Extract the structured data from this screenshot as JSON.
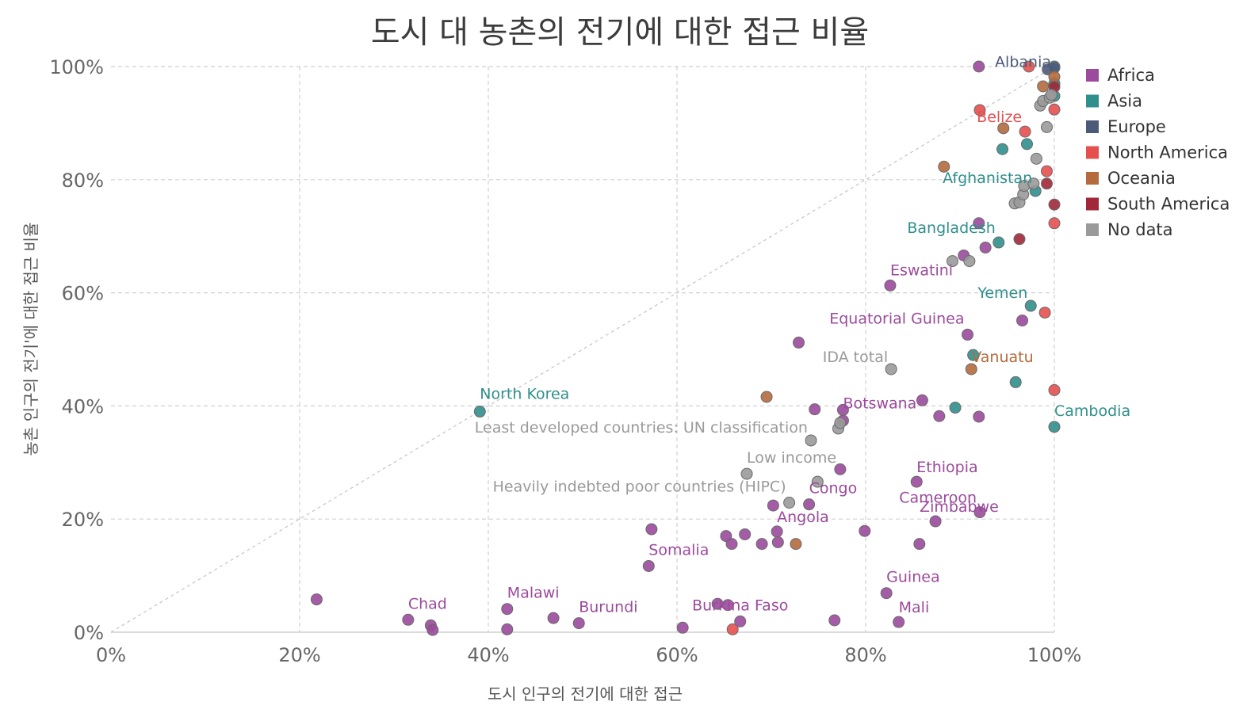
{
  "chart_data": {
    "type": "scatter",
    "title": "도시 대 농촌의 전기에 대한 접근 비율",
    "xlabel": "도시 인구의 전기에 대한 접근",
    "ylabel": "농촌 인구의 전기'에 대한 접근 비율",
    "xlim": [
      0,
      100
    ],
    "ylim": [
      0,
      100
    ],
    "x_ticks": [
      "0%",
      "20%",
      "40%",
      "60%",
      "80%",
      "100%"
    ],
    "y_ticks": [
      "0%",
      "20%",
      "40%",
      "60%",
      "80%",
      "100%"
    ],
    "grid": true,
    "reference_line": "y = x",
    "legend_position": "right",
    "legend": [
      {
        "name": "Africa",
        "color": "#9b4a9c"
      },
      {
        "name": "Asia",
        "color": "#2f8f8c"
      },
      {
        "name": "Europe",
        "color": "#4c5a7a"
      },
      {
        "name": "North America",
        "color": "#e5504f"
      },
      {
        "name": "Oceania",
        "color": "#b46a3c"
      },
      {
        "name": "South America",
        "color": "#a02838"
      },
      {
        "name": "No data",
        "color": "#9a9a9a"
      }
    ],
    "points": [
      {
        "x": 21.8,
        "y": 5.8,
        "region": "Africa"
      },
      {
        "x": 31.5,
        "y": 2.2,
        "region": "Africa",
        "label": "Chad"
      },
      {
        "x": 33.9,
        "y": 1.2,
        "region": "Africa"
      },
      {
        "x": 34.1,
        "y": 0.4,
        "region": "Africa"
      },
      {
        "x": 42.0,
        "y": 4.1,
        "region": "Africa",
        "label": "Malawi"
      },
      {
        "x": 42.0,
        "y": 0.5,
        "region": "Africa"
      },
      {
        "x": 46.9,
        "y": 2.5,
        "region": "Africa"
      },
      {
        "x": 49.6,
        "y": 1.6,
        "region": "Africa",
        "label": "Burundi"
      },
      {
        "x": 57.0,
        "y": 11.7,
        "region": "Africa",
        "label": "Somalia"
      },
      {
        "x": 57.3,
        "y": 18.2,
        "region": "Africa"
      },
      {
        "x": 60.6,
        "y": 0.8,
        "region": "Africa"
      },
      {
        "x": 64.3,
        "y": 5.0,
        "region": "Africa"
      },
      {
        "x": 65.2,
        "y": 17.0,
        "region": "Africa"
      },
      {
        "x": 65.4,
        "y": 4.8,
        "region": "Africa"
      },
      {
        "x": 65.8,
        "y": 15.6,
        "region": "Africa"
      },
      {
        "x": 66.7,
        "y": 1.9,
        "region": "Africa",
        "label": "Burkina Faso"
      },
      {
        "x": 67.2,
        "y": 17.3,
        "region": "Africa"
      },
      {
        "x": 65.9,
        "y": 0.5,
        "region": "North America"
      },
      {
        "x": 69.0,
        "y": 15.6,
        "region": "Africa"
      },
      {
        "x": 70.2,
        "y": 22.4,
        "region": "Africa"
      },
      {
        "x": 70.6,
        "y": 17.8,
        "region": "Africa",
        "label": "Angola"
      },
      {
        "x": 70.7,
        "y": 15.9,
        "region": "Africa"
      },
      {
        "x": 69.5,
        "y": 41.6,
        "region": "Oceania"
      },
      {
        "x": 72.6,
        "y": 15.6,
        "region": "Oceania"
      },
      {
        "x": 72.9,
        "y": 51.2,
        "region": "Africa"
      },
      {
        "x": 74.0,
        "y": 22.6,
        "region": "Africa",
        "label": "Congo"
      },
      {
        "x": 74.6,
        "y": 39.4,
        "region": "Africa"
      },
      {
        "x": 76.7,
        "y": 2.1,
        "region": "Africa"
      },
      {
        "x": 77.3,
        "y": 28.8,
        "region": "Africa"
      },
      {
        "x": 77.6,
        "y": 39.3,
        "region": "Africa",
        "label": "Botswana"
      },
      {
        "x": 77.6,
        "y": 37.4,
        "region": "Africa"
      },
      {
        "x": 79.9,
        "y": 17.9,
        "region": "Africa"
      },
      {
        "x": 82.2,
        "y": 6.9,
        "region": "Africa",
        "label": "Guinea"
      },
      {
        "x": 82.6,
        "y": 61.3,
        "region": "Africa",
        "label": "Eswatini"
      },
      {
        "x": 83.5,
        "y": 1.8,
        "region": "Africa",
        "label": "Mali"
      },
      {
        "x": 85.4,
        "y": 26.6,
        "region": "Africa",
        "label": "Ethiopia"
      },
      {
        "x": 85.7,
        "y": 15.6,
        "region": "Africa"
      },
      {
        "x": 86.0,
        "y": 41.0,
        "region": "Africa"
      },
      {
        "x": 87.4,
        "y": 19.6,
        "region": "Africa",
        "label": "Zimbabwe"
      },
      {
        "x": 87.8,
        "y": 38.2,
        "region": "Africa"
      },
      {
        "x": 90.4,
        "y": 66.6,
        "region": "Africa"
      },
      {
        "x": 90.8,
        "y": 52.6,
        "region": "Africa",
        "label": "Equatorial Guinea"
      },
      {
        "x": 92.0,
        "y": 38.1,
        "region": "Africa"
      },
      {
        "x": 92.0,
        "y": 72.3,
        "region": "Africa"
      },
      {
        "x": 92.1,
        "y": 21.2,
        "region": "Africa",
        "label": "Cameroon"
      },
      {
        "x": 92.7,
        "y": 68.0,
        "region": "Africa"
      },
      {
        "x": 96.6,
        "y": 55.1,
        "region": "Africa"
      },
      {
        "x": 92.0,
        "y": 100.0,
        "region": "Africa"
      },
      {
        "x": 39.1,
        "y": 39.0,
        "region": "Asia",
        "label": "North Korea"
      },
      {
        "x": 89.5,
        "y": 39.7,
        "region": "Asia"
      },
      {
        "x": 91.4,
        "y": 49.0,
        "region": "Asia"
      },
      {
        "x": 94.1,
        "y": 68.9,
        "region": "Asia",
        "label": "Bangladesh"
      },
      {
        "x": 94.5,
        "y": 85.4,
        "region": "Asia"
      },
      {
        "x": 95.9,
        "y": 44.2,
        "region": "Asia"
      },
      {
        "x": 97.1,
        "y": 86.3,
        "region": "Asia"
      },
      {
        "x": 97.5,
        "y": 57.7,
        "region": "Asia",
        "label": "Yemen"
      },
      {
        "x": 98.0,
        "y": 78.0,
        "region": "Asia",
        "label": "Afghanistan"
      },
      {
        "x": 100.0,
        "y": 36.3,
        "region": "Asia",
        "label": "Cambodia"
      },
      {
        "x": 100.0,
        "y": 94.8,
        "region": "Asia"
      },
      {
        "x": 100.0,
        "y": 97.0,
        "region": "Asia"
      },
      {
        "x": 100.0,
        "y": 100.0,
        "region": "Asia"
      },
      {
        "x": 99.3,
        "y": 99.5,
        "region": "Europe"
      },
      {
        "x": 100.0,
        "y": 99.8,
        "region": "Europe",
        "label": "Albania"
      },
      {
        "x": 92.1,
        "y": 92.3,
        "region": "North America"
      },
      {
        "x": 96.9,
        "y": 88.5,
        "region": "North America",
        "label": "Belize"
      },
      {
        "x": 97.3,
        "y": 100.0,
        "region": "North America"
      },
      {
        "x": 99.0,
        "y": 56.5,
        "region": "North America"
      },
      {
        "x": 99.2,
        "y": 81.5,
        "region": "North America"
      },
      {
        "x": 100.0,
        "y": 42.8,
        "region": "North America"
      },
      {
        "x": 100.0,
        "y": 72.3,
        "region": "North America"
      },
      {
        "x": 100.0,
        "y": 92.4,
        "region": "North America"
      },
      {
        "x": 88.3,
        "y": 82.3,
        "region": "Oceania"
      },
      {
        "x": 91.2,
        "y": 46.5,
        "region": "Oceania",
        "label": "Vanuatu"
      },
      {
        "x": 94.6,
        "y": 89.1,
        "region": "Oceania"
      },
      {
        "x": 98.8,
        "y": 96.5,
        "region": "Oceania"
      },
      {
        "x": 100.0,
        "y": 98.2,
        "region": "Oceania"
      },
      {
        "x": 96.3,
        "y": 69.5,
        "region": "South America"
      },
      {
        "x": 99.2,
        "y": 79.3,
        "region": "South America"
      },
      {
        "x": 100.0,
        "y": 75.6,
        "region": "South America"
      },
      {
        "x": 100.0,
        "y": 96.4,
        "region": "South America"
      },
      {
        "x": 67.4,
        "y": 28.0,
        "region": "No data",
        "label": "Low income"
      },
      {
        "x": 71.9,
        "y": 22.9,
        "region": "No data",
        "label": "Heavily indebted poor countries (HIPC)"
      },
      {
        "x": 74.2,
        "y": 33.9,
        "region": "No data",
        "label": "Least developed countries: UN classification"
      },
      {
        "x": 74.9,
        "y": 26.6,
        "region": "No data"
      },
      {
        "x": 77.1,
        "y": 36.0,
        "region": "No data"
      },
      {
        "x": 77.3,
        "y": 37.0,
        "region": "No data"
      },
      {
        "x": 82.7,
        "y": 46.5,
        "region": "No data",
        "label": "IDA total"
      },
      {
        "x": 89.2,
        "y": 65.6,
        "region": "No data"
      },
      {
        "x": 91.0,
        "y": 65.6,
        "region": "No data"
      },
      {
        "x": 95.8,
        "y": 75.8,
        "region": "No data"
      },
      {
        "x": 96.3,
        "y": 76.0,
        "region": "No data"
      },
      {
        "x": 96.7,
        "y": 77.4,
        "region": "No data"
      },
      {
        "x": 96.8,
        "y": 78.9,
        "region": "No data"
      },
      {
        "x": 97.8,
        "y": 79.3,
        "region": "No data"
      },
      {
        "x": 98.1,
        "y": 83.7,
        "region": "No data"
      },
      {
        "x": 98.5,
        "y": 93.1,
        "region": "No data"
      },
      {
        "x": 98.8,
        "y": 93.9,
        "region": "No data"
      },
      {
        "x": 99.2,
        "y": 89.3,
        "region": "No data"
      },
      {
        "x": 99.5,
        "y": 94.5,
        "region": "No data"
      },
      {
        "x": 99.7,
        "y": 95.0,
        "region": "No data"
      }
    ]
  }
}
